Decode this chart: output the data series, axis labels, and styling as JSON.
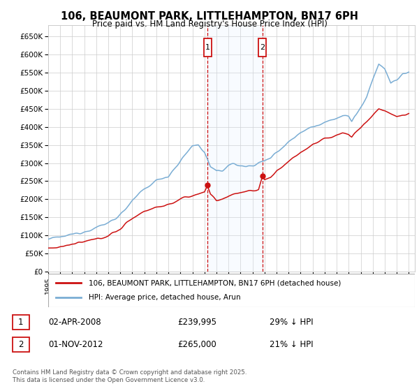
{
  "title": "106, BEAUMONT PARK, LITTLEHAMPTON, BN17 6PH",
  "subtitle": "Price paid vs. HM Land Registry's House Price Index (HPI)",
  "ylim": [
    0,
    680000
  ],
  "yticks": [
    0,
    50000,
    100000,
    150000,
    200000,
    250000,
    300000,
    350000,
    400000,
    450000,
    500000,
    550000,
    600000,
    650000
  ],
  "ytick_labels": [
    "£0",
    "£50K",
    "£100K",
    "£150K",
    "£200K",
    "£250K",
    "£300K",
    "£350K",
    "£400K",
    "£450K",
    "£500K",
    "£550K",
    "£600K",
    "£650K"
  ],
  "hpi_color": "#7aadd4",
  "price_color": "#cc1111",
  "marker1_date": "02-APR-2008",
  "marker1_price": 239995,
  "marker1_pct": "29% ↓ HPI",
  "marker2_date": "01-NOV-2012",
  "marker2_price": 265000,
  "marker2_pct": "21% ↓ HPI",
  "legend1": "106, BEAUMONT PARK, LITTLEHAMPTON, BN17 6PH (detached house)",
  "legend2": "HPI: Average price, detached house, Arun",
  "footer": "Contains HM Land Registry data © Crown copyright and database right 2025.\nThis data is licensed under the Open Government Licence v3.0.",
  "background_color": "#ffffff",
  "grid_color": "#cccccc",
  "shade_color": "#ddeeff",
  "xlim_start": 1995,
  "xlim_end": 2025.5,
  "marker1_t": 2008.25,
  "marker2_t": 2012.83
}
